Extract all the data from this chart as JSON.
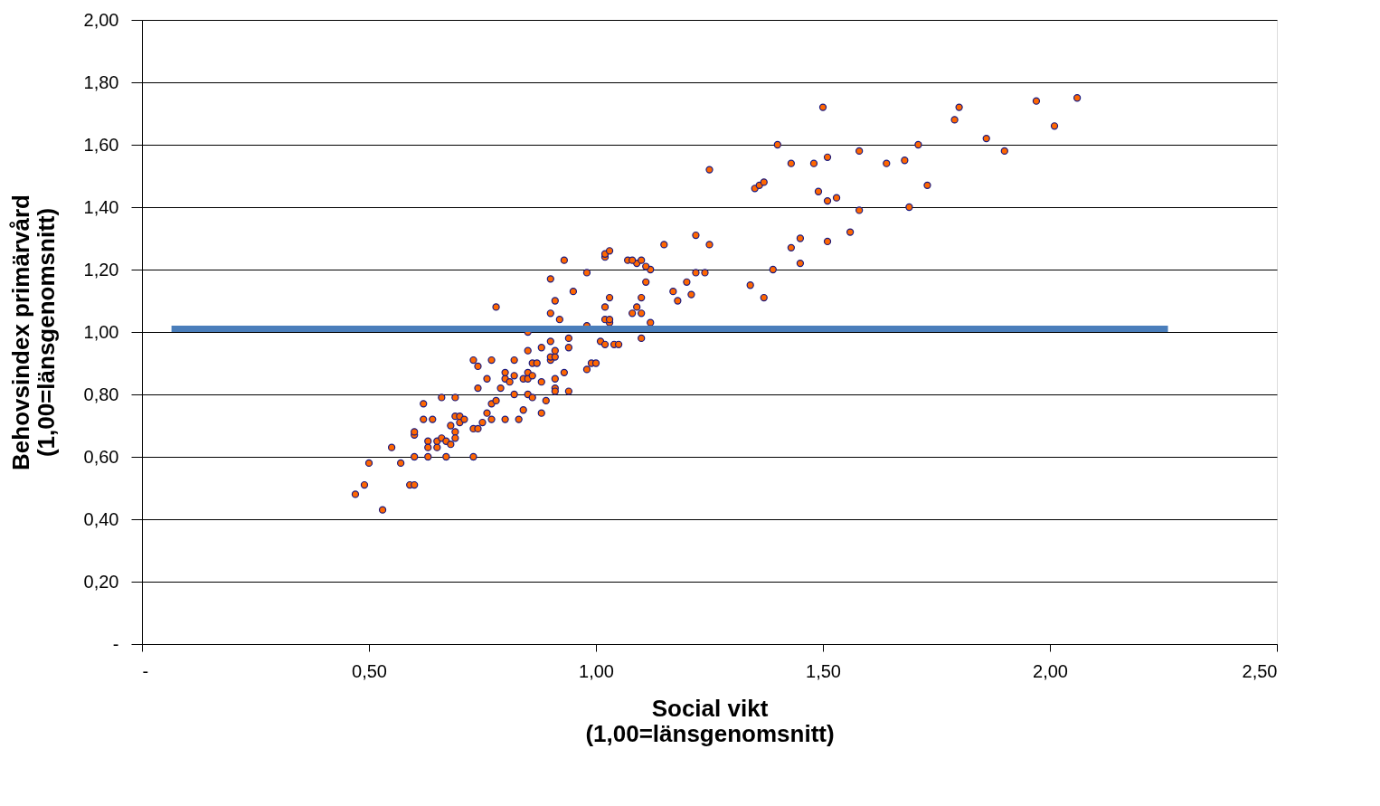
{
  "chart_data": {
    "type": "scatter",
    "xlabel": "Social vikt\n(1,00=länsgenomsnitt)",
    "ylabel": "Behovsindex primärvård\n(1,00=länsgenomsnitt)",
    "xlim": [
      0,
      2.5
    ],
    "ylim": [
      0,
      2
    ],
    "xticks": [
      {
        "value": 0,
        "label": "-"
      },
      {
        "value": 0.5,
        "label": "0,50"
      },
      {
        "value": 1,
        "label": "1,00"
      },
      {
        "value": 1.5,
        "label": "1,50"
      },
      {
        "value": 2,
        "label": "2,00"
      },
      {
        "value": 2.5,
        "label": "2,50"
      }
    ],
    "yticks": [
      {
        "value": 0,
        "label": "-"
      },
      {
        "value": 0.2,
        "label": "0,20"
      },
      {
        "value": 0.4,
        "label": "0,40"
      },
      {
        "value": 0.6,
        "label": "0,60"
      },
      {
        "value": 0.8,
        "label": "0,80"
      },
      {
        "value": 1,
        "label": "1,00"
      },
      {
        "value": 1.2,
        "label": "1,20"
      },
      {
        "value": 1.4,
        "label": "1,40"
      },
      {
        "value": 1.6,
        "label": "1,60"
      },
      {
        "value": 1.8,
        "label": "1,80"
      },
      {
        "value": 2,
        "label": "2,00"
      }
    ],
    "grid": "y",
    "series": [
      {
        "type": "scatter",
        "color": "#ff6600",
        "marker": "circle",
        "x": [
          0.47,
          0.49,
          0.5,
          0.53,
          0.55,
          0.57,
          0.59,
          0.6,
          0.6,
          0.63,
          0.67,
          0.73,
          0.6,
          0.6,
          0.62,
          0.66,
          0.69,
          0.62,
          0.64,
          0.63,
          0.63,
          0.65,
          0.65,
          0.66,
          0.67,
          0.68,
          0.68,
          0.69,
          0.69,
          0.69,
          0.7,
          0.7,
          0.71,
          0.73,
          0.74,
          0.75,
          0.77,
          0.76,
          0.8,
          0.83,
          0.84,
          0.88,
          0.77,
          0.78,
          0.74,
          0.79,
          0.82,
          0.76,
          0.8,
          0.81,
          0.8,
          0.82,
          0.73,
          0.74,
          0.77,
          0.82,
          0.78,
          0.85,
          0.86,
          0.89,
          0.91,
          0.91,
          0.94,
          0.84,
          0.85,
          0.85,
          0.86,
          0.88,
          0.91,
          0.93,
          0.98,
          0.99,
          1.0,
          0.86,
          0.87,
          0.9,
          0.9,
          0.91,
          0.85,
          0.91,
          0.88,
          0.94,
          0.9,
          0.94,
          1.01,
          1.02,
          1.04,
          1.05,
          0.85,
          1.1,
          0.98,
          1.03,
          1.12,
          0.92,
          1.02,
          1.03,
          0.9,
          1.08,
          1.1,
          1.02,
          1.09,
          0.91,
          1.03,
          1.1,
          0.95,
          0.9,
          1.11,
          0.98,
          1.12,
          1.11,
          1.09,
          0.93,
          1.07,
          1.08,
          1.1,
          1.02,
          1.02,
          1.03,
          1.15,
          1.17,
          1.18,
          1.2,
          1.21,
          1.22,
          1.24,
          1.22,
          1.25,
          1.25,
          1.4,
          1.43,
          1.48,
          1.51,
          1.58,
          1.64,
          1.68,
          1.71,
          1.73,
          1.35,
          1.36,
          1.37,
          1.49,
          1.51,
          1.53,
          1.58,
          1.69,
          1.45,
          1.43,
          1.51,
          1.56,
          1.45,
          1.39,
          1.34,
          1.37,
          1.5,
          1.8,
          1.79,
          1.97,
          2.06,
          2.01,
          1.86,
          1.9
        ],
        "values": [
          0.48,
          0.51,
          0.58,
          0.43,
          0.63,
          0.58,
          0.51,
          0.51,
          0.6,
          0.6,
          0.6,
          0.6,
          0.67,
          0.68,
          0.77,
          0.79,
          0.79,
          0.72,
          0.72,
          0.65,
          0.63,
          0.63,
          0.65,
          0.66,
          0.65,
          0.64,
          0.7,
          0.68,
          0.66,
          0.73,
          0.73,
          0.71,
          0.72,
          0.69,
          0.69,
          0.71,
          0.72,
          0.74,
          0.72,
          0.72,
          0.75,
          0.74,
          0.77,
          0.78,
          0.82,
          0.82,
          0.8,
          0.85,
          0.85,
          0.84,
          0.87,
          0.86,
          0.91,
          0.89,
          0.91,
          0.91,
          1.08,
          0.8,
          0.79,
          0.78,
          0.82,
          0.81,
          0.81,
          0.85,
          0.85,
          0.87,
          0.86,
          0.84,
          0.85,
          0.87,
          0.88,
          0.9,
          0.9,
          0.9,
          0.9,
          0.91,
          0.92,
          0.92,
          0.94,
          0.94,
          0.95,
          0.95,
          0.97,
          0.98,
          0.97,
          0.96,
          0.96,
          0.96,
          1.0,
          0.98,
          1.02,
          1.03,
          1.03,
          1.04,
          1.04,
          1.04,
          1.06,
          1.06,
          1.06,
          1.08,
          1.08,
          1.1,
          1.11,
          1.11,
          1.13,
          1.17,
          1.16,
          1.19,
          1.2,
          1.21,
          1.22,
          1.23,
          1.23,
          1.23,
          1.23,
          1.24,
          1.25,
          1.26,
          1.28,
          1.13,
          1.1,
          1.16,
          1.12,
          1.19,
          1.19,
          1.31,
          1.28,
          1.52,
          1.6,
          1.54,
          1.54,
          1.56,
          1.58,
          1.54,
          1.55,
          1.6,
          1.47,
          1.46,
          1.47,
          1.48,
          1.45,
          1.42,
          1.43,
          1.39,
          1.4,
          1.3,
          1.27,
          1.29,
          1.32,
          1.22,
          1.2,
          1.15,
          1.11,
          1.72,
          1.72,
          1.68,
          1.74,
          1.75,
          1.66,
          1.62,
          1.58
        ]
      },
      {
        "type": "line",
        "color": "#4a7ebb",
        "marker": "none",
        "x": [
          0.065,
          2.26
        ],
        "values": [
          1.01,
          1.01
        ]
      }
    ]
  }
}
